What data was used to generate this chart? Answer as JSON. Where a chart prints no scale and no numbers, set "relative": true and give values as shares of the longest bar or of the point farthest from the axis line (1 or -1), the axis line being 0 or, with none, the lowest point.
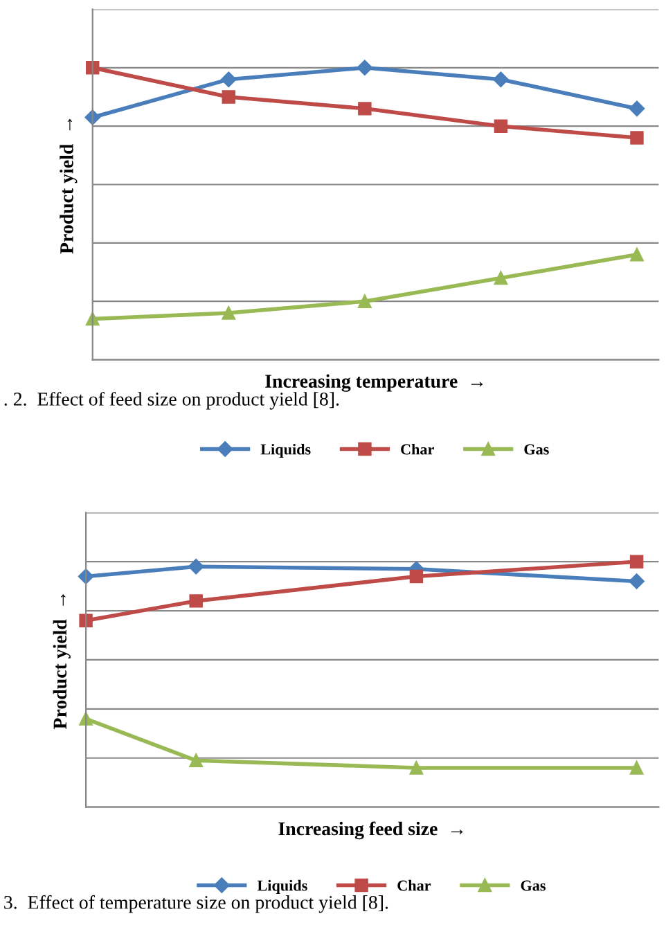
{
  "chart_data": [
    {
      "type": "line",
      "relative": true,
      "xlabel": "Increasing temperature  →",
      "ylabel": "Product yield  →",
      "categories": [
        null,
        null,
        null,
        null,
        null
      ],
      "series": [
        {
          "name": "Liquids",
          "color": "#4a7ebb",
          "marker": "diamond",
          "values": [
            0.83,
            0.96,
            1.0,
            0.96,
            0.86
          ]
        },
        {
          "name": "Char",
          "color": "#be4b48",
          "marker": "square",
          "values": [
            1.0,
            0.9,
            0.86,
            0.8,
            0.76
          ]
        },
        {
          "name": "Gas",
          "color": "#98b954",
          "marker": "triangle",
          "values": [
            0.14,
            0.16,
            0.2,
            0.28,
            0.36
          ]
        }
      ],
      "grid": "y",
      "legend": "bottom",
      "annotations": [
        ". 2.  Effect of feed size on product yield [8]."
      ]
    },
    {
      "type": "line",
      "relative": true,
      "xlabel": "Increasing feed size  →",
      "ylabel": "Product yield  →",
      "categories": [
        null,
        null,
        null,
        null,
        null,
        null
      ],
      "series": [
        {
          "name": "Liquids",
          "color": "#4a7ebb",
          "marker": "diamond",
          "values": [
            0.94,
            0.98,
            null,
            0.97,
            null,
            0.92
          ]
        },
        {
          "name": "Char",
          "color": "#be4b48",
          "marker": "square",
          "values": [
            0.76,
            0.84,
            null,
            0.94,
            null,
            1.0
          ]
        },
        {
          "name": "Gas",
          "color": "#98b954",
          "marker": "triangle",
          "values": [
            0.36,
            0.19,
            null,
            0.16,
            null,
            0.16
          ]
        }
      ],
      "grid": "y",
      "legend": "bottom",
      "annotations": [
        "3.  Effect of temperature size on product yield [8]."
      ]
    }
  ]
}
